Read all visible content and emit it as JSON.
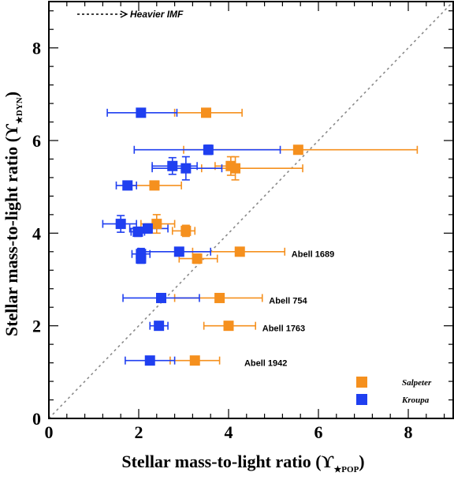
{
  "chart_data": {
    "type": "scatter",
    "title": "",
    "xlabel_main": "Stellar mass-to-light ratio (",
    "xlabel_sym": "ϒ",
    "xlabel_sub": "★POP",
    "xlabel_end": ")",
    "ylabel_main": "Stellar mass-to-light ratio (",
    "ylabel_sym": "ϒ",
    "ylabel_sub": "★DYN",
    "ylabel_end": ")",
    "xlim": [
      0,
      9
    ],
    "ylim": [
      0,
      9
    ],
    "xticks": [
      0,
      2,
      4,
      6,
      8
    ],
    "yticks": [
      0,
      2,
      4,
      6,
      8
    ],
    "one_to_one_line": true,
    "imf_arrow_label": "Heavier IMF",
    "legend_position": "bottom-right",
    "series": [
      {
        "name": "Salpeter",
        "color": "#F5901E",
        "points": [
          {
            "x": 3.5,
            "y": 6.6,
            "xerr": [
              0.7,
              0.8
            ],
            "yerr": 0.06
          },
          {
            "x": 5.55,
            "y": 5.8,
            "xerr": [
              2.55,
              2.65
            ],
            "yerr": 0.08
          },
          {
            "x": 4.05,
            "y": 5.45,
            "xerr": [
              0.35,
              0.0
            ],
            "yerr": 0.2
          },
          {
            "x": 4.15,
            "y": 5.4,
            "xerr": [
              0.75,
              1.5
            ],
            "yerr": 0.25
          },
          {
            "x": 2.35,
            "y": 5.03,
            "xerr": [
              0.6,
              0.6
            ],
            "yerr": 0.07
          },
          {
            "x": 2.4,
            "y": 4.2,
            "xerr": [
              0.35,
              0.4
            ],
            "yerr": 0.2
          },
          {
            "x": 3.05,
            "y": 4.05,
            "xerr": [
              0.3,
              0.2
            ],
            "yerr": 0.12
          },
          {
            "x": 4.25,
            "y": 3.6,
            "xerr": [
              1.05,
              1.0
            ],
            "yerr": 0.06
          },
          {
            "x": 3.3,
            "y": 3.45,
            "xerr": [
              0.4,
              0.45
            ],
            "yerr": 0.1
          },
          {
            "x": 3.8,
            "y": 2.6,
            "xerr": [
              1.0,
              0.95
            ],
            "yerr": 0.06
          },
          {
            "x": 4.0,
            "y": 2.0,
            "xerr": [
              0.55,
              0.6
            ],
            "yerr": 0.06
          },
          {
            "x": 3.25,
            "y": 1.25,
            "xerr": [
              0.55,
              0.55
            ],
            "yerr": 0.06
          }
        ]
      },
      {
        "name": "Kroupa",
        "color": "#1F3FF0",
        "points": [
          {
            "x": 2.05,
            "y": 6.6,
            "xerr": [
              0.75,
              0.8
            ],
            "yerr": 0.08
          },
          {
            "x": 3.55,
            "y": 5.8,
            "xerr": [
              1.65,
              1.6
            ],
            "yerr": 0.1
          },
          {
            "x": 2.75,
            "y": 5.45,
            "xerr": [
              0.45,
              0.55
            ],
            "yerr": 0.18
          },
          {
            "x": 3.05,
            "y": 5.4,
            "xerr": [
              0.75,
              0.8
            ],
            "yerr": 0.25
          },
          {
            "x": 1.75,
            "y": 5.03,
            "xerr": [
              0.25,
              0.2
            ],
            "yerr": 0.08
          },
          {
            "x": 1.6,
            "y": 4.2,
            "xerr": [
              0.4,
              0.35
            ],
            "yerr": 0.18
          },
          {
            "x": 2.2,
            "y": 4.1,
            "xerr": [
              0.4,
              0.45
            ],
            "yerr": 0.1
          },
          {
            "x": 1.98,
            "y": 4.03,
            "xerr": [
              0.15,
              0.15
            ],
            "yerr": 0.1
          },
          {
            "x": 2.05,
            "y": 3.55,
            "xerr": [
              0.2,
              0.2
            ],
            "yerr": 0.12
          },
          {
            "x": 2.9,
            "y": 3.6,
            "xerr": [
              0.9,
              0.7
            ],
            "yerr": 0.06
          },
          {
            "x": 2.05,
            "y": 3.45,
            "xerr": [
              0.1,
              0.1
            ],
            "yerr": 0.1
          },
          {
            "x": 2.5,
            "y": 2.6,
            "xerr": [
              0.85,
              0.85
            ],
            "yerr": 0.06
          },
          {
            "x": 2.45,
            "y": 2.0,
            "xerr": [
              0.2,
              0.2
            ],
            "yerr": 0.06
          },
          {
            "x": 2.25,
            "y": 1.25,
            "xerr": [
              0.55,
              0.55
            ],
            "yerr": 0.06
          }
        ]
      }
    ],
    "annotations": [
      {
        "text": "Abell 1689",
        "x": 5.4,
        "y": 3.55
      },
      {
        "text": "Abell 754",
        "x": 4.9,
        "y": 2.55
      },
      {
        "text": "Abell 1763",
        "x": 4.75,
        "y": 1.95
      },
      {
        "text": "Abell 1942",
        "x": 4.35,
        "y": 1.2
      }
    ]
  }
}
